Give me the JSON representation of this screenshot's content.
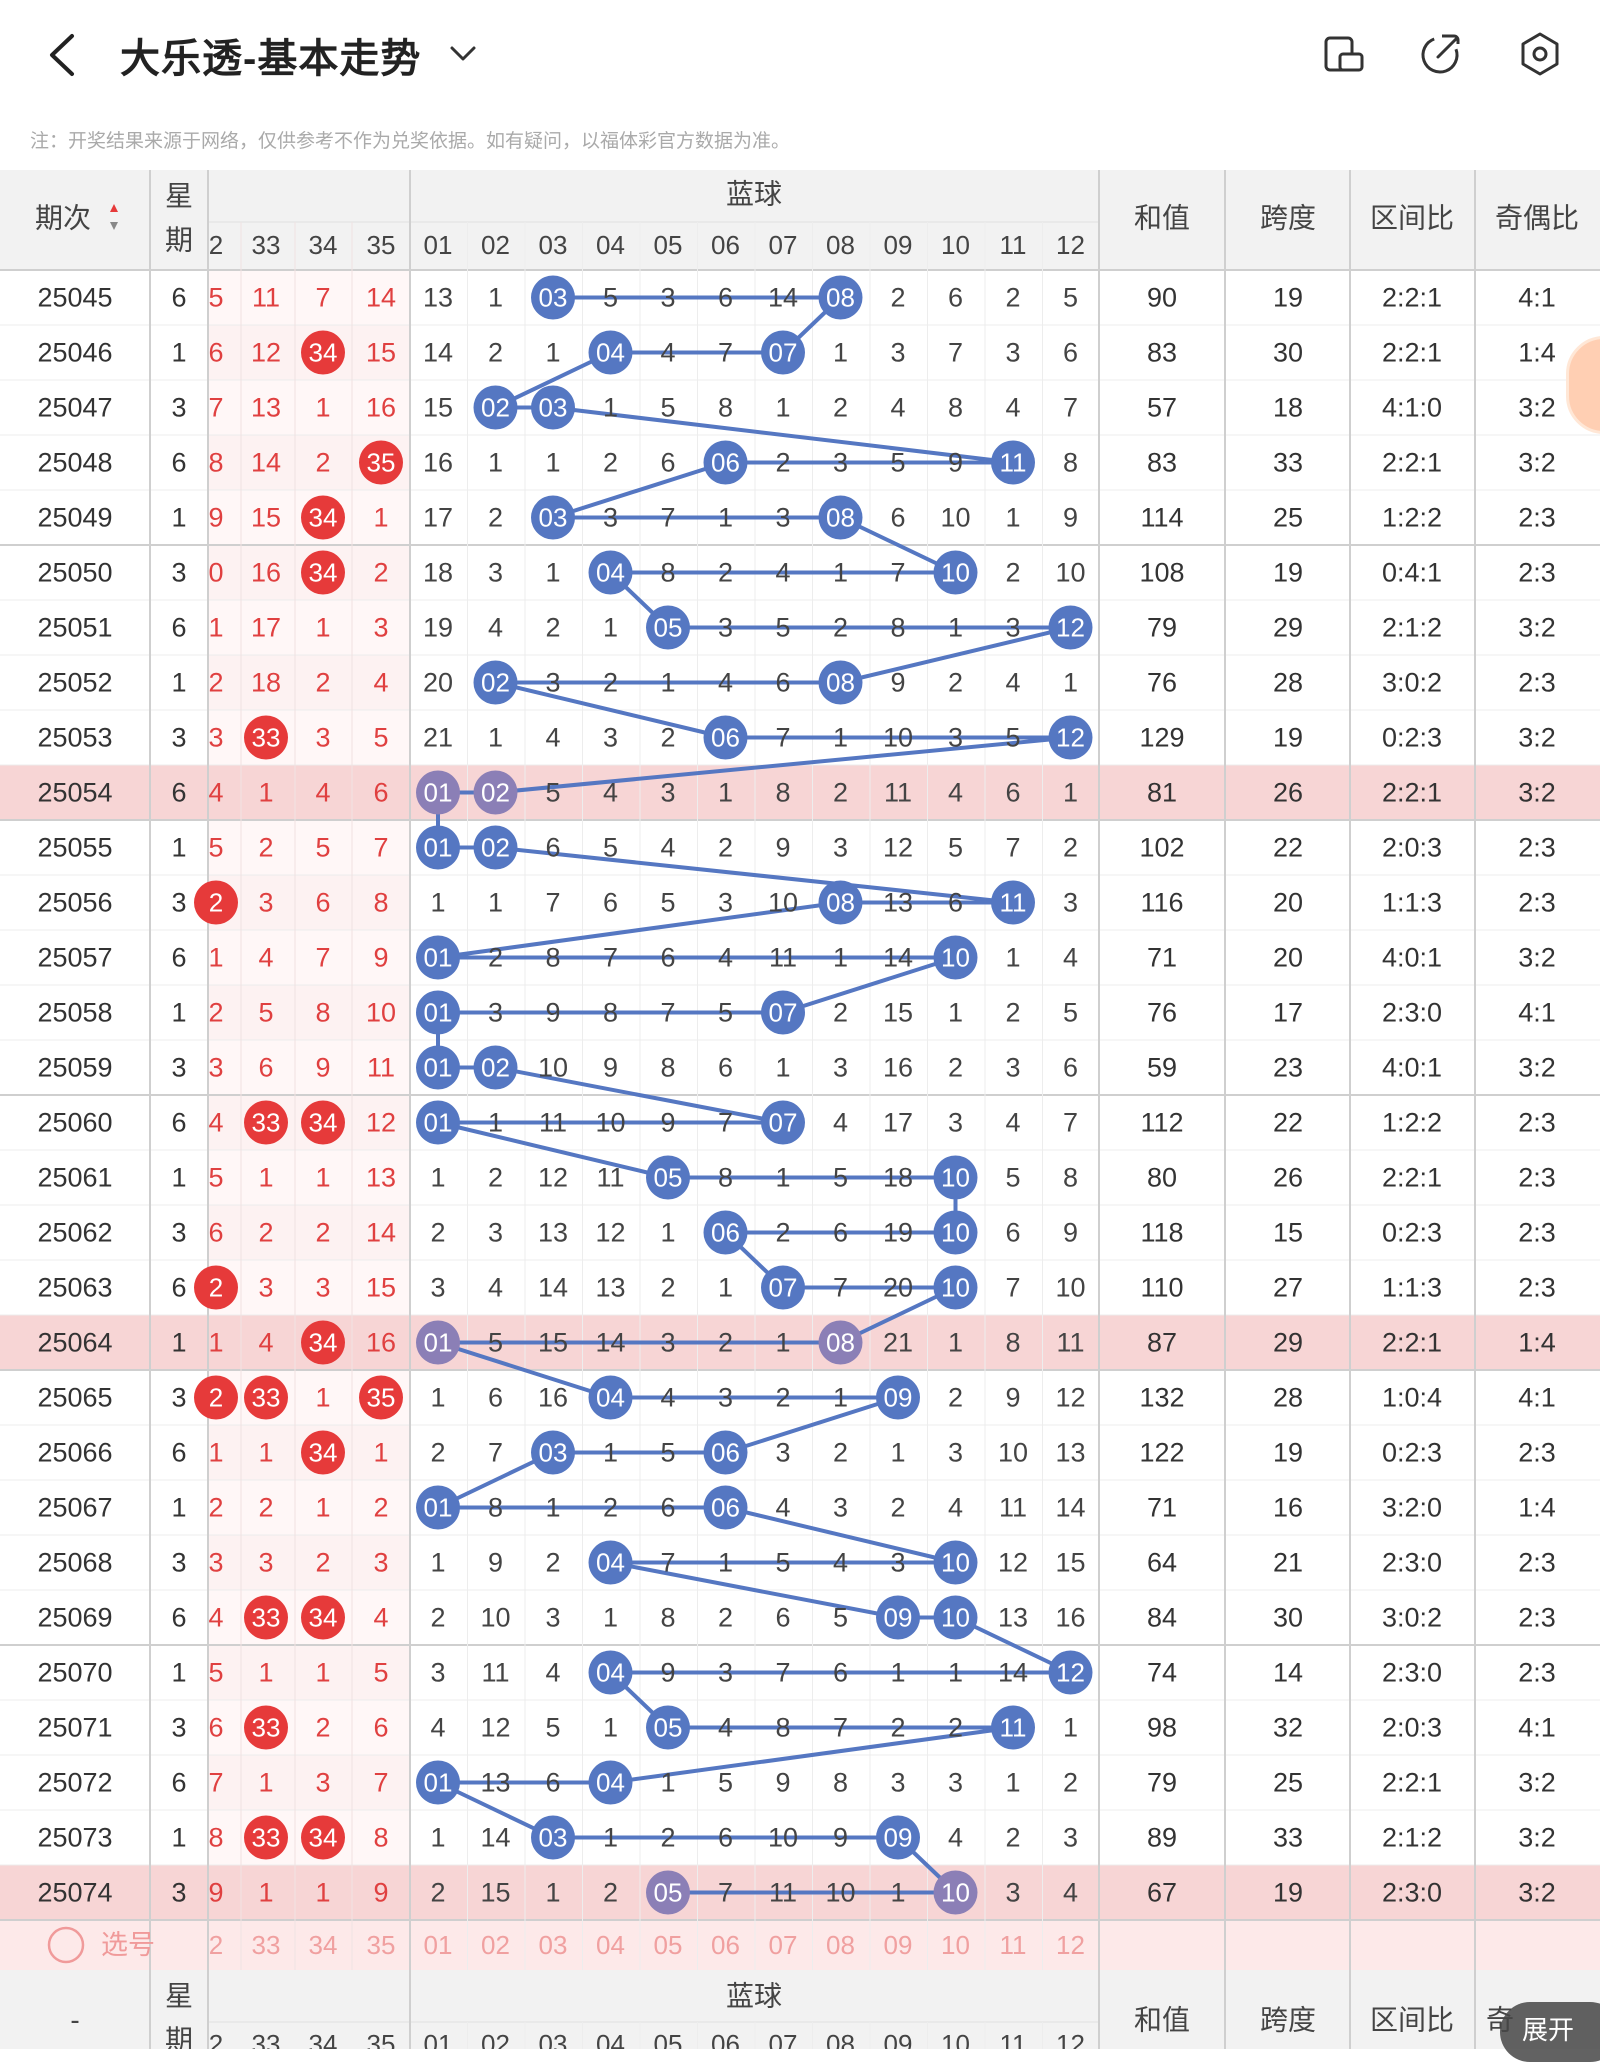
{
  "header": {
    "title": "大乐透-基本走势",
    "note": "注：开奖结果来源于网络，仅供参考不作为兑奖依据。如有疑问，以福体彩官方数据为准。"
  },
  "table": {
    "col_period": "期次",
    "col_week": "星期",
    "col_blue_group": "蓝球",
    "col_sum": "和值",
    "col_span": "跨度",
    "col_zone": "区间比",
    "col_odd": "奇偶比",
    "front_headers": [
      "2",
      "33",
      "34",
      "35"
    ],
    "blue_headers": [
      "01",
      "02",
      "03",
      "04",
      "05",
      "06",
      "07",
      "08",
      "09",
      "10",
      "11",
      "12"
    ],
    "select_label": "选号",
    "footer_period": "-",
    "expand_label": "展开",
    "footer_odd_partial": "奇",
    "rows": [
      {
        "p": "25045",
        "w": "6",
        "f": [
          "5",
          "11",
          "7",
          "14"
        ],
        "b": [
          "13",
          "1",
          "03",
          "5",
          "3",
          "6",
          "14",
          "08",
          "2",
          "6",
          "2",
          "5"
        ],
        "s": "90",
        "sp": "19",
        "z": "2:2:1",
        "o": "4:1"
      },
      {
        "p": "25046",
        "w": "1",
        "f": [
          "6",
          "12",
          "34",
          "15"
        ],
        "b": [
          "14",
          "2",
          "1",
          "04",
          "4",
          "7",
          "07",
          "1",
          "3",
          "7",
          "3",
          "6"
        ],
        "s": "83",
        "sp": "30",
        "z": "2:2:1",
        "o": "1:4"
      },
      {
        "p": "25047",
        "w": "3",
        "f": [
          "7",
          "13",
          "1",
          "16"
        ],
        "b": [
          "15",
          "02",
          "03",
          "1",
          "5",
          "8",
          "1",
          "2",
          "4",
          "8",
          "4",
          "7"
        ],
        "s": "57",
        "sp": "18",
        "z": "4:1:0",
        "o": "3:2"
      },
      {
        "p": "25048",
        "w": "6",
        "f": [
          "8",
          "14",
          "2",
          "35"
        ],
        "b": [
          "16",
          "1",
          "1",
          "2",
          "6",
          "06",
          "2",
          "3",
          "5",
          "9",
          "11",
          "8"
        ],
        "s": "83",
        "sp": "33",
        "z": "2:2:1",
        "o": "3:2"
      },
      {
        "p": "25049",
        "w": "1",
        "f": [
          "9",
          "15",
          "34",
          "1"
        ],
        "b": [
          "17",
          "2",
          "03",
          "3",
          "7",
          "1",
          "3",
          "08",
          "6",
          "10",
          "1",
          "9"
        ],
        "s": "114",
        "sp": "25",
        "z": "1:2:2",
        "o": "2:3"
      },
      {
        "p": "25050",
        "w": "3",
        "f": [
          "0",
          "16",
          "34",
          "2"
        ],
        "b": [
          "18",
          "3",
          "1",
          "04",
          "8",
          "2",
          "4",
          "1",
          "7",
          "10",
          "2",
          "10"
        ],
        "s": "108",
        "sp": "19",
        "z": "0:4:1",
        "o": "2:3"
      },
      {
        "p": "25051",
        "w": "6",
        "f": [
          "1",
          "17",
          "1",
          "3"
        ],
        "b": [
          "19",
          "4",
          "2",
          "1",
          "05",
          "3",
          "5",
          "2",
          "8",
          "1",
          "3",
          "12"
        ],
        "s": "79",
        "sp": "29",
        "z": "2:1:2",
        "o": "3:2"
      },
      {
        "p": "25052",
        "w": "1",
        "f": [
          "2",
          "18",
          "2",
          "4"
        ],
        "b": [
          "20",
          "02",
          "3",
          "2",
          "1",
          "4",
          "6",
          "08",
          "9",
          "2",
          "4",
          "1"
        ],
        "s": "76",
        "sp": "28",
        "z": "3:0:2",
        "o": "2:3"
      },
      {
        "p": "25053",
        "w": "3",
        "f": [
          "3",
          "33",
          "3",
          "5"
        ],
        "b": [
          "21",
          "1",
          "4",
          "3",
          "2",
          "06",
          "7",
          "1",
          "10",
          "3",
          "5",
          "12"
        ],
        "s": "129",
        "sp": "19",
        "z": "0:2:3",
        "o": "3:2"
      },
      {
        "p": "25054",
        "w": "6",
        "f": [
          "4",
          "1",
          "4",
          "6"
        ],
        "b": [
          "01",
          "02",
          "5",
          "4",
          "3",
          "1",
          "8",
          "2",
          "11",
          "4",
          "6",
          "1"
        ],
        "s": "81",
        "sp": "26",
        "z": "2:2:1",
        "o": "3:2"
      },
      {
        "p": "25055",
        "w": "1",
        "f": [
          "5",
          "2",
          "5",
          "7"
        ],
        "b": [
          "01",
          "02",
          "6",
          "5",
          "4",
          "2",
          "9",
          "3",
          "12",
          "5",
          "7",
          "2"
        ],
        "s": "102",
        "sp": "22",
        "z": "2:0:3",
        "o": "2:3"
      },
      {
        "p": "25056",
        "w": "3",
        "f": [
          "2",
          "3",
          "6",
          "8"
        ],
        "b": [
          "1",
          "1",
          "7",
          "6",
          "5",
          "3",
          "10",
          "08",
          "13",
          "6",
          "11",
          "3"
        ],
        "s": "116",
        "sp": "20",
        "z": "1:1:3",
        "o": "2:3"
      },
      {
        "p": "25057",
        "w": "6",
        "f": [
          "1",
          "4",
          "7",
          "9"
        ],
        "b": [
          "01",
          "2",
          "8",
          "7",
          "6",
          "4",
          "11",
          "1",
          "14",
          "10",
          "1",
          "4"
        ],
        "s": "71",
        "sp": "20",
        "z": "4:0:1",
        "o": "3:2"
      },
      {
        "p": "25058",
        "w": "1",
        "f": [
          "2",
          "5",
          "8",
          "10"
        ],
        "b": [
          "01",
          "3",
          "9",
          "8",
          "7",
          "5",
          "07",
          "2",
          "15",
          "1",
          "2",
          "5"
        ],
        "s": "76",
        "sp": "17",
        "z": "2:3:0",
        "o": "4:1"
      },
      {
        "p": "25059",
        "w": "3",
        "f": [
          "3",
          "6",
          "9",
          "11"
        ],
        "b": [
          "01",
          "02",
          "10",
          "9",
          "8",
          "6",
          "1",
          "3",
          "16",
          "2",
          "3",
          "6"
        ],
        "s": "59",
        "sp": "23",
        "z": "4:0:1",
        "o": "3:2"
      },
      {
        "p": "25060",
        "w": "6",
        "f": [
          "4",
          "33",
          "34",
          "12"
        ],
        "b": [
          "01",
          "1",
          "11",
          "10",
          "9",
          "7",
          "07",
          "4",
          "17",
          "3",
          "4",
          "7"
        ],
        "s": "112",
        "sp": "22",
        "z": "1:2:2",
        "o": "2:3"
      },
      {
        "p": "25061",
        "w": "1",
        "f": [
          "5",
          "1",
          "1",
          "13"
        ],
        "b": [
          "1",
          "2",
          "12",
          "11",
          "05",
          "8",
          "1",
          "5",
          "18",
          "10",
          "5",
          "8"
        ],
        "s": "80",
        "sp": "26",
        "z": "2:2:1",
        "o": "2:3"
      },
      {
        "p": "25062",
        "w": "3",
        "f": [
          "6",
          "2",
          "2",
          "14"
        ],
        "b": [
          "2",
          "3",
          "13",
          "12",
          "1",
          "06",
          "2",
          "6",
          "19",
          "10",
          "6",
          "9"
        ],
        "s": "118",
        "sp": "15",
        "z": "0:2:3",
        "o": "2:3"
      },
      {
        "p": "25063",
        "w": "6",
        "f": [
          "2",
          "3",
          "3",
          "15"
        ],
        "b": [
          "3",
          "4",
          "14",
          "13",
          "2",
          "1",
          "07",
          "7",
          "20",
          "10",
          "7",
          "10"
        ],
        "s": "110",
        "sp": "27",
        "z": "1:1:3",
        "o": "2:3"
      },
      {
        "p": "25064",
        "w": "1",
        "f": [
          "1",
          "4",
          "34",
          "16"
        ],
        "b": [
          "01",
          "5",
          "15",
          "14",
          "3",
          "2",
          "1",
          "08",
          "21",
          "1",
          "8",
          "11"
        ],
        "s": "87",
        "sp": "29",
        "z": "2:2:1",
        "o": "1:4"
      },
      {
        "p": "25065",
        "w": "3",
        "f": [
          "2",
          "33",
          "1",
          "35"
        ],
        "b": [
          "1",
          "6",
          "16",
          "04",
          "4",
          "3",
          "2",
          "1",
          "09",
          "2",
          "9",
          "12"
        ],
        "s": "132",
        "sp": "28",
        "z": "1:0:4",
        "o": "4:1"
      },
      {
        "p": "25066",
        "w": "6",
        "f": [
          "1",
          "1",
          "34",
          "1"
        ],
        "b": [
          "2",
          "7",
          "03",
          "1",
          "5",
          "06",
          "3",
          "2",
          "1",
          "3",
          "10",
          "13"
        ],
        "s": "122",
        "sp": "19",
        "z": "0:2:3",
        "o": "2:3"
      },
      {
        "p": "25067",
        "w": "1",
        "f": [
          "2",
          "2",
          "1",
          "2"
        ],
        "b": [
          "01",
          "8",
          "1",
          "2",
          "6",
          "06",
          "4",
          "3",
          "2",
          "4",
          "11",
          "14"
        ],
        "s": "71",
        "sp": "16",
        "z": "3:2:0",
        "o": "1:4"
      },
      {
        "p": "25068",
        "w": "3",
        "f": [
          "3",
          "3",
          "2",
          "3"
        ],
        "b": [
          "1",
          "9",
          "2",
          "04",
          "7",
          "1",
          "5",
          "4",
          "3",
          "10",
          "12",
          "15"
        ],
        "s": "64",
        "sp": "21",
        "z": "2:3:0",
        "o": "2:3"
      },
      {
        "p": "25069",
        "w": "6",
        "f": [
          "4",
          "33",
          "34",
          "4"
        ],
        "b": [
          "2",
          "10",
          "3",
          "1",
          "8",
          "2",
          "6",
          "5",
          "09",
          "10",
          "13",
          "16"
        ],
        "s": "84",
        "sp": "30",
        "z": "3:0:2",
        "o": "2:3"
      },
      {
        "p": "25070",
        "w": "1",
        "f": [
          "5",
          "1",
          "1",
          "5"
        ],
        "b": [
          "3",
          "11",
          "4",
          "04",
          "9",
          "3",
          "7",
          "6",
          "1",
          "1",
          "14",
          "12"
        ],
        "s": "74",
        "sp": "14",
        "z": "2:3:0",
        "o": "2:3"
      },
      {
        "p": "25071",
        "w": "3",
        "f": [
          "6",
          "33",
          "2",
          "6"
        ],
        "b": [
          "4",
          "12",
          "5",
          "1",
          "05",
          "4",
          "8",
          "7",
          "2",
          "2",
          "11",
          "1"
        ],
        "s": "98",
        "sp": "32",
        "z": "2:0:3",
        "o": "4:1"
      },
      {
        "p": "25072",
        "w": "6",
        "f": [
          "7",
          "1",
          "3",
          "7"
        ],
        "b": [
          "01",
          "13",
          "6",
          "04",
          "1",
          "5",
          "9",
          "8",
          "3",
          "3",
          "1",
          "2"
        ],
        "s": "79",
        "sp": "25",
        "z": "2:2:1",
        "o": "3:2"
      },
      {
        "p": "25073",
        "w": "1",
        "f": [
          "8",
          "33",
          "34",
          "8"
        ],
        "b": [
          "1",
          "14",
          "03",
          "1",
          "2",
          "6",
          "10",
          "9",
          "09",
          "4",
          "2",
          "3"
        ],
        "s": "89",
        "sp": "33",
        "z": "2:1:2",
        "o": "3:2"
      },
      {
        "p": "25074",
        "w": "3",
        "f": [
          "9",
          "1",
          "1",
          "9"
        ],
        "b": [
          "2",
          "15",
          "1",
          "2",
          "05",
          "7",
          "11",
          "10",
          "1",
          "10",
          "3",
          "4"
        ],
        "s": "67",
        "sp": "19",
        "z": "2:3:0",
        "o": "3:2"
      }
    ],
    "highlight_periods": [
      "25054",
      "25064",
      "25074"
    ],
    "front_hits": [
      [
        false,
        false,
        false,
        false
      ],
      [
        false,
        false,
        true,
        false
      ],
      [
        false,
        false,
        false,
        false
      ],
      [
        false,
        false,
        false,
        true
      ],
      [
        false,
        false,
        true,
        false
      ],
      [
        false,
        false,
        true,
        false
      ],
      [
        false,
        false,
        false,
        false
      ],
      [
        false,
        false,
        false,
        false
      ],
      [
        false,
        true,
        false,
        false
      ],
      [
        false,
        false,
        false,
        false
      ],
      [
        false,
        false,
        false,
        false
      ],
      [
        true,
        false,
        false,
        false
      ],
      [
        false,
        false,
        false,
        false
      ],
      [
        false,
        false,
        false,
        false
      ],
      [
        false,
        false,
        false,
        false
      ],
      [
        false,
        true,
        true,
        false
      ],
      [
        false,
        false,
        false,
        false
      ],
      [
        false,
        false,
        false,
        false
      ],
      [
        true,
        false,
        false,
        false
      ],
      [
        false,
        false,
        true,
        false
      ],
      [
        true,
        true,
        false,
        true
      ],
      [
        false,
        false,
        true,
        false
      ],
      [
        false,
        false,
        false,
        false
      ],
      [
        false,
        false,
        false,
        false
      ],
      [
        false,
        true,
        true,
        false
      ],
      [
        false,
        false,
        false,
        false
      ],
      [
        false,
        true,
        false,
        false
      ],
      [
        false,
        false,
        false,
        false
      ],
      [
        false,
        true,
        true,
        false
      ],
      [
        false,
        false,
        false,
        false
      ]
    ],
    "blue_hits": [
      [
        2,
        7
      ],
      [
        3,
        6
      ],
      [
        1,
        2
      ],
      [
        5,
        10
      ],
      [
        2,
        7
      ],
      [
        3,
        9
      ],
      [
        4,
        11
      ],
      [
        1,
        7
      ],
      [
        5,
        11
      ],
      [
        0,
        1
      ],
      [
        0,
        1
      ],
      [
        7,
        10
      ],
      [
        0,
        9
      ],
      [
        0,
        6
      ],
      [
        0,
        1
      ],
      [
        0,
        6
      ],
      [
        4,
        9
      ],
      [
        5,
        9
      ],
      [
        6,
        9
      ],
      [
        0,
        7
      ],
      [
        3,
        8
      ],
      [
        2,
        5
      ],
      [
        0,
        5
      ],
      [
        3,
        9
      ],
      [
        8,
        9
      ],
      [
        3,
        11
      ],
      [
        4,
        10
      ],
      [
        0,
        3
      ],
      [
        2,
        8
      ],
      [
        4,
        9
      ]
    ]
  },
  "colors": {
    "red_ball": "#e63a3a",
    "blue_ball": "#5577c2",
    "red_text": "#e04040",
    "highlight_row": "#f7d5d5",
    "header_bg": "#f2f2f2",
    "select_row_bg": "#fde9e9"
  },
  "icons": [
    "back-arrow-icon",
    "dropdown-chevron-icon",
    "phone-landscape-icon",
    "share-icon",
    "settings-icon",
    "circle-checkbox-icon"
  ]
}
